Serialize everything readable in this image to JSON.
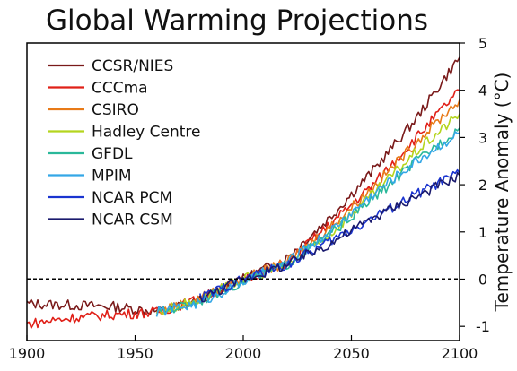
{
  "chart_data": {
    "type": "line",
    "title": "Global Warming Projections",
    "xlabel": "",
    "ylabel": "Temperature Anomaly (°C)",
    "xlim": [
      1900,
      2100
    ],
    "ylim": [
      -1.3,
      5
    ],
    "x_ticks": [
      1900,
      1950,
      2000,
      2050,
      2100
    ],
    "y_ticks": [
      -1,
      0,
      1,
      2,
      3,
      4,
      5
    ],
    "reference_line": {
      "y": 0,
      "style": "dashed",
      "color": "#000000"
    },
    "grid": false,
    "legend_position": "top-left",
    "series": [
      {
        "name": "CCSR/NIES",
        "color": "#7a1a1a",
        "x": [
          1900,
          1920,
          1940,
          1960,
          1980,
          2000,
          2020,
          2040,
          2060,
          2080,
          2100
        ],
        "y": [
          -0.52,
          -0.55,
          -0.58,
          -0.68,
          -0.45,
          0.0,
          0.45,
          1.3,
          2.3,
          3.4,
          4.7
        ]
      },
      {
        "name": "CCCma",
        "color": "#e02018",
        "x": [
          1900,
          1920,
          1940,
          1960,
          1980,
          2000,
          2020,
          2040,
          2060,
          2080,
          2100
        ],
        "y": [
          -0.95,
          -0.82,
          -0.75,
          -0.7,
          -0.42,
          0.0,
          0.35,
          1.15,
          2.0,
          3.0,
          4.0
        ]
      },
      {
        "name": "CSIRO",
        "color": "#e87a18",
        "x": [
          1960,
          1980,
          2000,
          2020,
          2040,
          2060,
          2080,
          2100
        ],
        "y": [
          -0.7,
          -0.4,
          0.0,
          0.35,
          1.1,
          1.95,
          2.9,
          3.8
        ]
      },
      {
        "name": "Hadley Centre",
        "color": "#b5d51e",
        "x": [
          1960,
          1980,
          2000,
          2020,
          2040,
          2060,
          2080,
          2100
        ],
        "y": [
          -0.7,
          -0.42,
          0.0,
          0.3,
          0.95,
          1.8,
          2.7,
          3.5
        ]
      },
      {
        "name": "GFDL",
        "color": "#2ab89a",
        "x": [
          1960,
          1980,
          2000,
          2020,
          2040,
          2060,
          2080,
          2100
        ],
        "y": [
          -0.72,
          -0.45,
          -0.05,
          0.3,
          0.95,
          1.7,
          2.5,
          3.2
        ]
      },
      {
        "name": "MPIM",
        "color": "#34a7e6",
        "x": [
          1960,
          1980,
          2000,
          2020,
          2040,
          2060,
          2080,
          2100
        ],
        "y": [
          -0.7,
          -0.5,
          -0.05,
          0.35,
          1.0,
          1.8,
          2.5,
          3.1
        ]
      },
      {
        "name": "NCAR PCM",
        "color": "#1a34d0",
        "x": [
          1980,
          2000,
          2020,
          2040,
          2060,
          2080,
          2100
        ],
        "y": [
          -0.4,
          0.0,
          0.3,
          0.8,
          1.3,
          1.8,
          2.25
        ]
      },
      {
        "name": "NCAR CSM",
        "color": "#1a1a6e",
        "x": [
          1980,
          2000,
          2020,
          2040,
          2060,
          2080,
          2100
        ],
        "y": [
          -0.42,
          0.0,
          0.3,
          0.75,
          1.3,
          1.75,
          2.2
        ]
      }
    ]
  }
}
